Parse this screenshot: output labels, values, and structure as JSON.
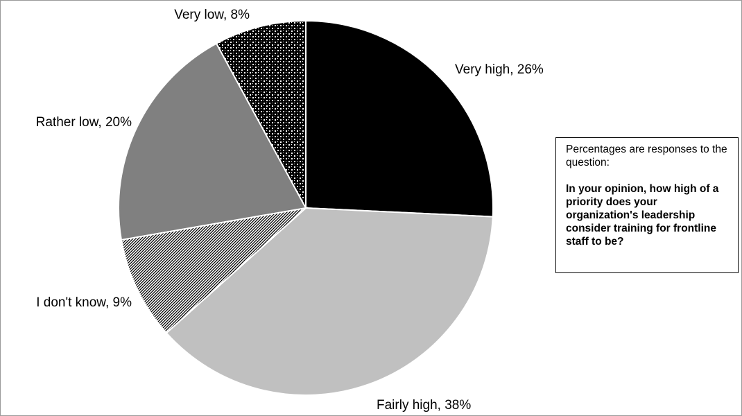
{
  "chart_data": {
    "type": "pie",
    "start": "12 o'clock",
    "direction": "clockwise",
    "slices": [
      {
        "label": "Very high, 26%",
        "category": "Very high",
        "value": 26,
        "fill": "#000000",
        "pattern": "solid"
      },
      {
        "label": "Fairly high, 38%",
        "category": "Fairly high",
        "value": 38,
        "fill": "#c0c0c0",
        "pattern": "solid"
      },
      {
        "label": "I don't know, 9%",
        "category": "I don't know",
        "value": 9,
        "fill": "#ffffff",
        "pattern": "diagonal-hatch"
      },
      {
        "label": "Rather low, 20%",
        "category": "Rather low",
        "value": 20,
        "fill": "#808080",
        "pattern": "solid"
      },
      {
        "label": "Very low, 8%",
        "category": "Very low",
        "value": 8,
        "fill": "#000000",
        "pattern": "checker-dots"
      }
    ]
  },
  "note": {
    "intro": "Percentages are responses to the question:",
    "question": "In your opinion, how high of a priority does your organization's leadership consider training for frontline staff to be?"
  }
}
